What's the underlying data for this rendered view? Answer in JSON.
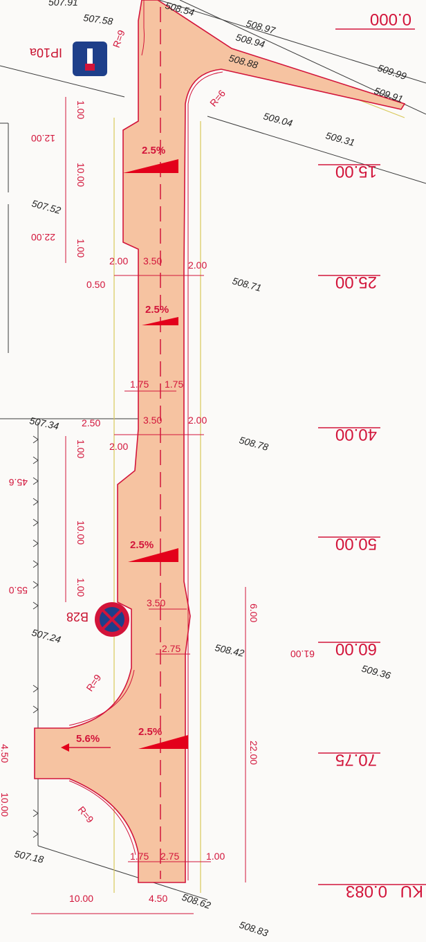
{
  "colors": {
    "pavement": "#f6c3a1",
    "line": "#d2143a",
    "grid": "#d8c95a",
    "text": "#222222"
  },
  "elevations": {
    "e1": "507.91",
    "e2": "507.58",
    "e3": "508.54",
    "e4": "508.97",
    "e5": "508.94",
    "e6": "508.88",
    "e7": "509.99",
    "e8": "509.91",
    "e9": "509.04",
    "e10": "509.31",
    "e11": "507.52",
    "e12": "508.71",
    "e13": "507.34",
    "e14": "508.78",
    "e15": "507.24",
    "e16": "508.42",
    "e17": "509.36",
    "e18": "507.18",
    "e19": "508.62",
    "e20": "508.83"
  },
  "stations": {
    "s0": "0.000",
    "s15": "15.00",
    "s25": "25.00",
    "s40": "40.00",
    "s50": "50.00",
    "s60": "60.00",
    "s61": "61.00",
    "s70": "70.75",
    "s83": "0.083",
    "s83b": "KU",
    "sl12": "12.00",
    "sl22": "22.00",
    "sl45": "45.6",
    "sl55": "55.0"
  },
  "dimensions": {
    "d1": "1.00",
    "d2": "10.00",
    "d3": "1.00",
    "d4": "2.00",
    "d5": "3.50",
    "d6": "2.00",
    "d7": "0.50",
    "d8": "1.75",
    "d9": "1.75",
    "d10": "2.50",
    "d11": "3.50",
    "d12": "2.00",
    "d13": "2.00",
    "d14": "1.00",
    "d15": "10.00",
    "d16": "1.00",
    "d17": "3.50",
    "d18": "2.75",
    "d19": "6.00",
    "d20": "22.00",
    "d21": "4.50",
    "d22": "10.00",
    "d23": "1.75",
    "d24": "2.75",
    "d25": "1.00",
    "d26": "10.00",
    "d27": "4.50"
  },
  "slopes": {
    "sl1": "2.5%",
    "sl2": "2.5%",
    "sl3": "2.5%",
    "sl4": "2.5%",
    "sl5": "5.6%"
  },
  "radii": {
    "r1": "R=9",
    "r2": "R=6",
    "r3": "R=9",
    "r4": "R=9"
  },
  "signs": {
    "ip10a": "IP10a",
    "b28": "B28"
  }
}
